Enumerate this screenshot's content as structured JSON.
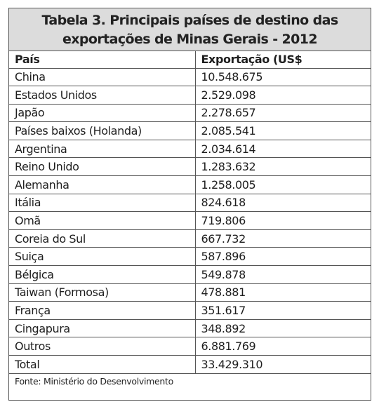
{
  "table": {
    "title_line1": "Tabela 3. Principais países de destino das",
    "title_line2": "exportações de Minas Gerais - 2012",
    "headers": {
      "country": "País",
      "export": "Exportação (US$"
    },
    "rows": [
      {
        "country": "China",
        "export": "10.548.675"
      },
      {
        "country": "Estados Unidos",
        "export": "2.529.098"
      },
      {
        "country": "Japão",
        "export": "2.278.657"
      },
      {
        "country": "Países baixos (Holanda)",
        "export": "2.085.541"
      },
      {
        "country": "Argentina",
        "export": "2.034.614"
      },
      {
        "country": "Reino Unido",
        "export": "1.283.632"
      },
      {
        "country": "Alemanha",
        "export": "1.258.005"
      },
      {
        "country": "Itália",
        "export": "824.618"
      },
      {
        "country": "Omã",
        "export": "719.806"
      },
      {
        "country": "Coreia do Sul",
        "export": "667.732"
      },
      {
        "country": "Suiça",
        "export": "587.896"
      },
      {
        "country": "Bélgica",
        "export": "549.878"
      },
      {
        "country": "Taiwan (Formosa)",
        "export": "478.881"
      },
      {
        "country": "França",
        "export": "351.617"
      },
      {
        "country": "Cingapura",
        "export": "348.892"
      },
      {
        "country": "Outros",
        "export": "6.881.769"
      },
      {
        "country": "Total",
        "export": "33.429.310"
      }
    ],
    "source": "Fonte: Ministério do Desenvolvimento"
  }
}
